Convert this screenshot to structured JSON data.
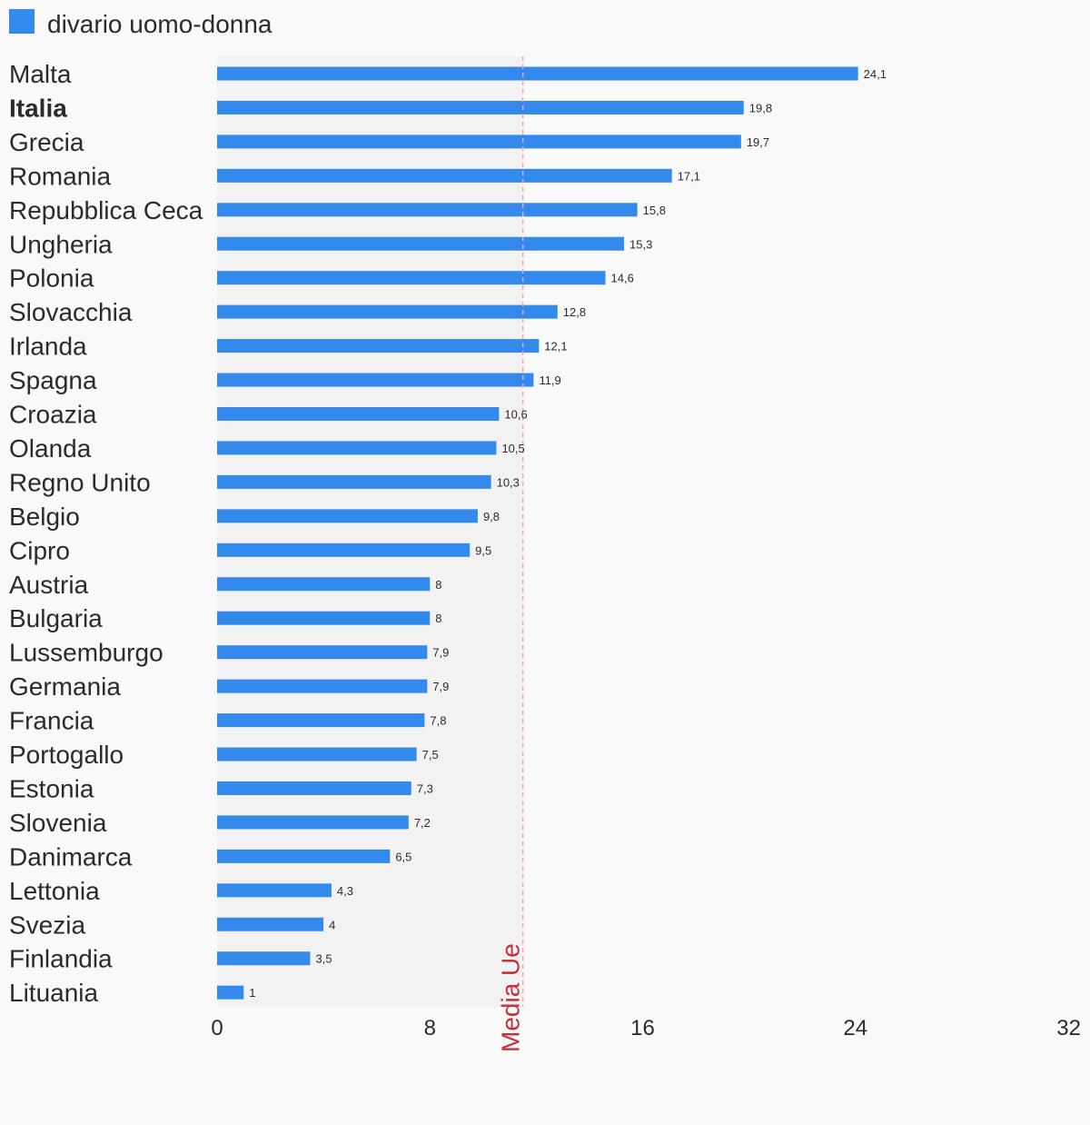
{
  "chart_data": {
    "type": "bar",
    "orientation": "horizontal",
    "categories": [
      "Malta",
      "Italia",
      "Grecia",
      "Romania",
      "Repubblica Ceca",
      "Ungheria",
      "Polonia",
      "Slovacchia",
      "Irlanda",
      "Spagna",
      "Croazia",
      "Olanda",
      "Regno Unito",
      "Belgio",
      "Cipro",
      "Austria",
      "Bulgaria",
      "Lussemburgo",
      "Germania",
      "Francia",
      "Portogallo",
      "Estonia",
      "Slovenia",
      "Danimarca",
      "Lettonia",
      "Svezia",
      "Finlandia",
      "Lituania"
    ],
    "highlight_category": "Italia",
    "series": [
      {
        "name": "divario uomo-donna",
        "color": "#338aec",
        "values": [
          24.1,
          19.8,
          19.7,
          17.1,
          15.8,
          15.3,
          14.6,
          12.8,
          12.1,
          11.9,
          10.6,
          10.5,
          10.3,
          9.8,
          9.5,
          8,
          8,
          7.9,
          7.9,
          7.8,
          7.5,
          7.3,
          7.2,
          6.5,
          4.3,
          4,
          3.5,
          1
        ],
        "value_labels": [
          "24,1",
          "19,8",
          "19,7",
          "17,1",
          "15,8",
          "15,3",
          "14,6",
          "12,8",
          "12,1",
          "11,9",
          "10,6",
          "10,5",
          "10,3",
          "9,8",
          "9,5",
          "8",
          "8",
          "7,9",
          "7,9",
          "7,8",
          "7,5",
          "7,3",
          "7,2",
          "6,5",
          "4,3",
          "4",
          "3,5",
          "1"
        ]
      }
    ],
    "xlim": [
      0,
      32
    ],
    "xticks": [
      0,
      8,
      16,
      24,
      32
    ],
    "xtick_labels": [
      "0",
      "8",
      "16",
      "24",
      "32"
    ],
    "reference": {
      "label": "Media Ue",
      "value": 11.5,
      "color": "#c5303a",
      "shaded_region": [
        0,
        11.5
      ],
      "shade_color": "#f2f2f2"
    },
    "legend_position": "top-left",
    "grid": false
  }
}
